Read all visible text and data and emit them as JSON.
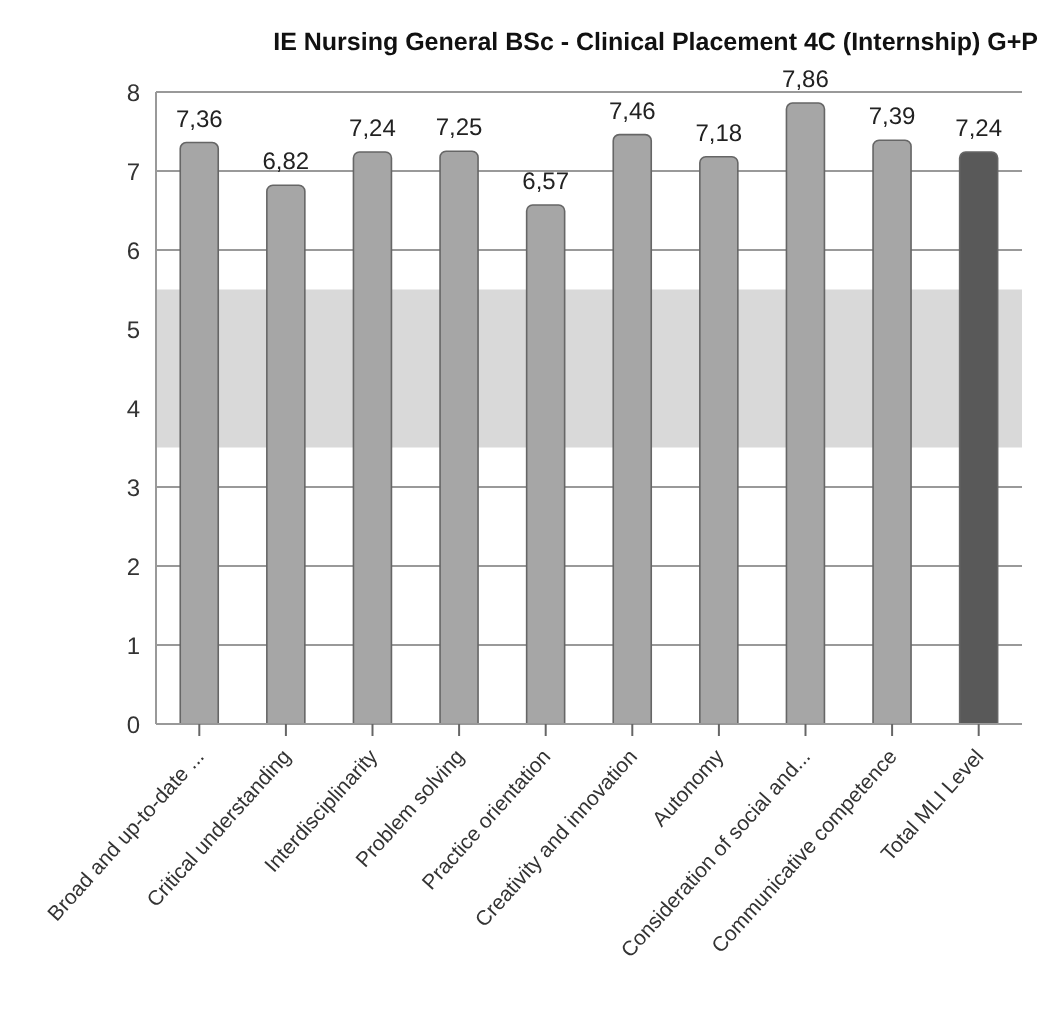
{
  "chart_data": {
    "type": "bar",
    "title": "IE Nursing General BSc - Clinical Placement 4C (Internship) G+P",
    "categories": [
      "Broad and up-to-date ...",
      "Critical understanding",
      "Interdisciplinarity",
      "Problem solving",
      "Practice orientation",
      "Creativity and innovation",
      "Autonomy",
      "Consideration of social and...",
      "Communicative competence",
      "Total MLI Level"
    ],
    "values": [
      7.36,
      6.82,
      7.24,
      7.25,
      6.57,
      7.46,
      7.18,
      7.86,
      7.39,
      7.24
    ],
    "value_labels": [
      "7,36",
      "6,82",
      "7,24",
      "7,25",
      "6,57",
      "7,46",
      "7,18",
      "7,86",
      "7,39",
      "7,24"
    ],
    "colors": [
      "#a6a6a6",
      "#a6a6a6",
      "#a6a6a6",
      "#a6a6a6",
      "#a6a6a6",
      "#a6a6a6",
      "#a6a6a6",
      "#a6a6a6",
      "#a6a6a6",
      "#595959"
    ],
    "ylim": [
      0,
      8
    ],
    "yticks": [
      0,
      1,
      2,
      3,
      4,
      5,
      6,
      7,
      8
    ],
    "grid": "y",
    "bands": [
      {
        "axis": "y",
        "from": 3.5,
        "to": 5.5,
        "color": "#d9d9d9"
      }
    ]
  }
}
